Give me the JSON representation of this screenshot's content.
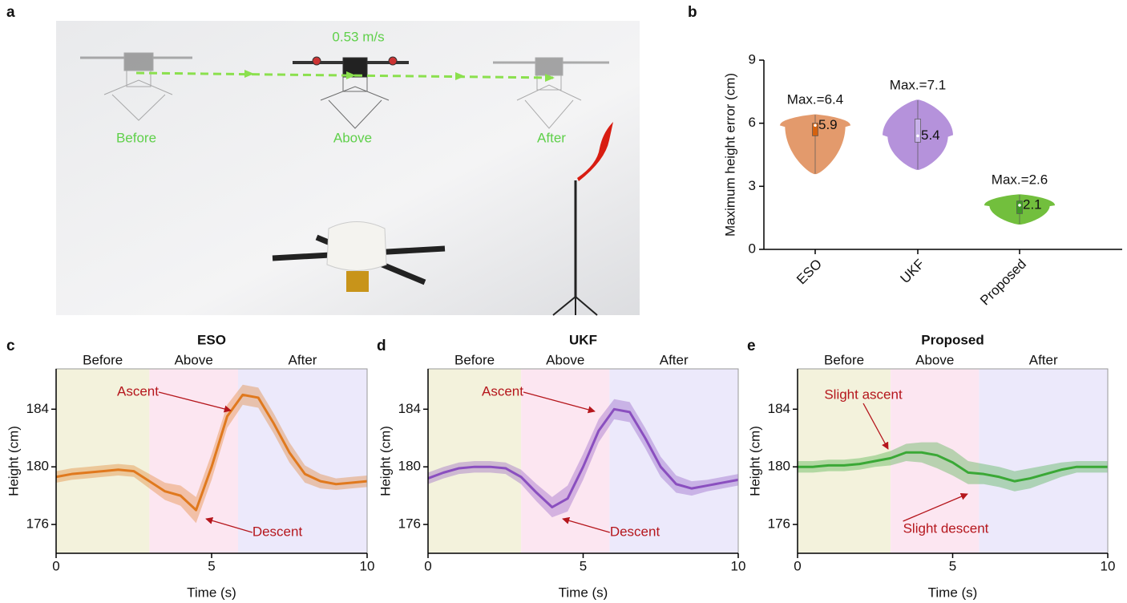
{
  "panel_labels": [
    "a",
    "b",
    "c",
    "d",
    "e"
  ],
  "photo": {
    "speed_label": "0.53 m/s",
    "positions": [
      "Before",
      "Above",
      "After"
    ]
  },
  "chart_data": [
    {
      "type": "violin",
      "ylabel": "Maximum height error (cm)",
      "categories": [
        "ESO",
        "UKF",
        "Proposed"
      ],
      "colors": [
        "#e39a6c",
        "#b592db",
        "#72bf3d"
      ],
      "box_colors": [
        "#d5620f",
        "#c8b2ea",
        "#3f9a25"
      ],
      "min": [
        3.6,
        3.8,
        1.2
      ],
      "q1": [
        5.4,
        5.1,
        1.7
      ],
      "q3": [
        6.0,
        6.2,
        2.3
      ],
      "medians": [
        5.9,
        5.4,
        2.1
      ],
      "max_values": [
        6.4,
        7.1,
        2.6
      ],
      "max_labels": [
        "Max.=6.4",
        "Max.=7.1",
        "Max.=2.6"
      ],
      "ylim": [
        0,
        9
      ],
      "yticks": [
        0,
        3,
        6,
        9
      ]
    },
    {
      "type": "line",
      "title": "ESO",
      "xlabel": "Time (s)",
      "ylabel": "Height (cm)",
      "color": "#e0791e",
      "regions": [
        {
          "label": "Before",
          "start": 0,
          "end": 3,
          "color": "#f3f2dc"
        },
        {
          "label": "Above",
          "start": 3,
          "end": 5.85,
          "color": "#fce6f1"
        },
        {
          "label": "After",
          "start": 5.85,
          "end": 10,
          "color": "#ece9fb"
        }
      ],
      "x": [
        0,
        0.5,
        1,
        1.5,
        2,
        2.5,
        3,
        3.5,
        4,
        4.5,
        5,
        5.5,
        6,
        6.5,
        7,
        7.5,
        8,
        8.5,
        9,
        9.5,
        10
      ],
      "values": [
        179.3,
        179.5,
        179.6,
        179.7,
        179.8,
        179.7,
        179.0,
        178.3,
        178.0,
        177.0,
        180.0,
        183.5,
        185.0,
        184.8,
        183.0,
        181.0,
        179.5,
        179.0,
        178.8,
        178.9,
        179.0
      ],
      "lower": [
        178.9,
        179.1,
        179.2,
        179.3,
        179.4,
        179.3,
        178.5,
        177.7,
        177.3,
        176.1,
        179.1,
        182.7,
        184.3,
        184.1,
        182.3,
        180.3,
        178.9,
        178.5,
        178.4,
        178.5,
        178.6
      ],
      "upper": [
        179.7,
        179.9,
        180.0,
        180.1,
        180.2,
        180.1,
        179.5,
        178.9,
        178.7,
        177.9,
        180.9,
        184.3,
        185.7,
        185.5,
        183.7,
        181.7,
        180.1,
        179.5,
        179.2,
        179.3,
        179.4
      ],
      "annotations": [
        "Ascent",
        "Descent"
      ],
      "xlim": [
        0,
        10
      ],
      "xticks": [
        0,
        5,
        10
      ],
      "ylim": [
        174,
        186.8
      ],
      "yticks": [
        176,
        180,
        184
      ]
    },
    {
      "type": "line",
      "title": "UKF",
      "xlabel": "Time (s)",
      "ylabel": "Height (cm)",
      "color": "#8a4fbf",
      "regions": [
        {
          "label": "Before",
          "start": 0,
          "end": 3,
          "color": "#f3f2dc"
        },
        {
          "label": "Above",
          "start": 3,
          "end": 5.85,
          "color": "#fce6f1"
        },
        {
          "label": "After",
          "start": 5.85,
          "end": 10,
          "color": "#ece9fb"
        }
      ],
      "x": [
        0,
        0.5,
        1,
        1.5,
        2,
        2.5,
        3,
        3.5,
        4,
        4.5,
        5,
        5.5,
        6,
        6.5,
        7,
        7.5,
        8,
        8.5,
        9,
        9.5,
        10
      ],
      "values": [
        179.2,
        179.6,
        179.9,
        180.0,
        180.0,
        179.9,
        179.3,
        178.2,
        177.2,
        177.8,
        180.0,
        182.5,
        184.0,
        183.8,
        182.0,
        180.0,
        178.8,
        178.5,
        178.7,
        178.9,
        179.1
      ],
      "lower": [
        178.8,
        179.2,
        179.5,
        179.6,
        179.6,
        179.5,
        178.8,
        177.6,
        176.5,
        176.9,
        179.1,
        181.7,
        183.3,
        183.1,
        181.3,
        179.3,
        178.2,
        178.0,
        178.3,
        178.5,
        178.7
      ],
      "upper": [
        179.6,
        180.0,
        180.3,
        180.4,
        180.4,
        180.3,
        179.8,
        178.8,
        177.9,
        178.7,
        180.9,
        183.3,
        184.7,
        184.5,
        182.7,
        180.7,
        179.4,
        179.0,
        179.1,
        179.3,
        179.5
      ],
      "annotations": [
        "Ascent",
        "Descent"
      ],
      "xlim": [
        0,
        10
      ],
      "xticks": [
        0,
        5,
        10
      ],
      "ylim": [
        174,
        186.8
      ],
      "yticks": [
        176,
        180,
        184
      ]
    },
    {
      "type": "line",
      "title": "Proposed",
      "xlabel": "Time (s)",
      "ylabel": "Height (cm)",
      "color": "#3aa836",
      "regions": [
        {
          "label": "Before",
          "start": 0,
          "end": 3,
          "color": "#f3f2dc"
        },
        {
          "label": "Above",
          "start": 3,
          "end": 5.85,
          "color": "#fce6f1"
        },
        {
          "label": "After",
          "start": 5.85,
          "end": 10,
          "color": "#ece9fb"
        }
      ],
      "x": [
        0,
        0.5,
        1,
        1.5,
        2,
        2.5,
        3,
        3.5,
        4,
        4.5,
        5,
        5.5,
        6,
        6.5,
        7,
        7.5,
        8,
        8.5,
        9,
        9.5,
        10
      ],
      "values": [
        180.0,
        180.0,
        180.1,
        180.1,
        180.2,
        180.4,
        180.6,
        181.0,
        181.0,
        180.8,
        180.3,
        179.6,
        179.5,
        179.3,
        179.0,
        179.2,
        179.5,
        179.8,
        180.0,
        180.0,
        180.0
      ],
      "lower": [
        179.6,
        179.6,
        179.7,
        179.7,
        179.8,
        180.0,
        180.1,
        180.4,
        180.3,
        179.9,
        179.4,
        178.8,
        178.8,
        178.6,
        178.3,
        178.5,
        178.9,
        179.3,
        179.6,
        179.6,
        179.6
      ],
      "upper": [
        180.4,
        180.4,
        180.5,
        180.5,
        180.6,
        180.8,
        181.1,
        181.6,
        181.7,
        181.7,
        181.2,
        180.4,
        180.2,
        180.0,
        179.7,
        179.9,
        180.1,
        180.3,
        180.4,
        180.4,
        180.4
      ],
      "annotations": [
        "Slight ascent",
        "Slight descent"
      ],
      "xlim": [
        0,
        10
      ],
      "xticks": [
        0,
        5,
        10
      ],
      "ylim": [
        174,
        186.8
      ],
      "yticks": [
        176,
        180,
        184
      ]
    }
  ]
}
